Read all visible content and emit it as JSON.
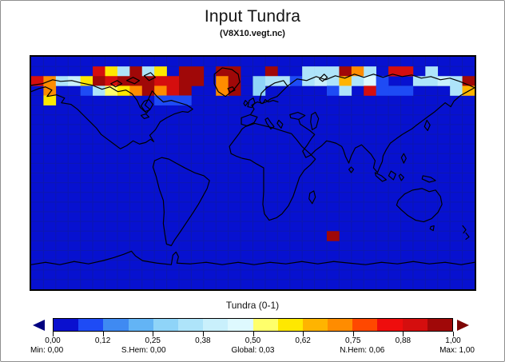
{
  "header": {
    "title": "Input Tundra",
    "subtitle": "(V8X10.vegt.nc)"
  },
  "colorbar": {
    "label": "Tundra (0-1)",
    "tick_labels": [
      "0,00",
      "0,12",
      "0,25",
      "0,38",
      "0,50",
      "0,62",
      "0,75",
      "0,88",
      "1,00"
    ],
    "stats": [
      "Min: 0,00",
      "S.Hem: 0,00",
      "Global: 0,03",
      "N.Hem: 0,06",
      "Max: 1,00"
    ],
    "underflow_arrow_color": "#000080",
    "overflow_arrow_color": "#7d0606"
  },
  "chart_data": {
    "type": "heatmap",
    "title": "Input Tundra",
    "subtitle": "(V8X10.vegt.nc)",
    "colorbar_label": "Tundra (0-1)",
    "value_range": [
      0,
      1
    ],
    "stats": {
      "min": "0,00",
      "s_hem": "0,00",
      "global": "0,03",
      "n_hem": "0,06",
      "max": "1,00"
    },
    "grid": {
      "cols": 36,
      "rows": 24,
      "projection": "equirectangular world map, 8x10 degree cells"
    },
    "ocean_color": "#0711d0",
    "gridline_color": "#0d17b0",
    "palette": [
      "#0a10cf",
      "#1e4bf5",
      "#3f8af2",
      "#63b4f5",
      "#8fd4f8",
      "#aee4fa",
      "#c9f0fc",
      "#def9fe",
      "#ffff6b",
      "#ffe800",
      "#ffb400",
      "#ff8c00",
      "#ff4800",
      "#ee0d0d",
      "#d50e0e",
      "#a00808"
    ],
    "cells": [
      [
        5,
        1,
        0.88
      ],
      [
        6,
        1,
        0.6
      ],
      [
        7,
        1,
        0.35
      ],
      [
        8,
        1,
        0.97
      ],
      [
        9,
        1,
        0.35
      ],
      [
        10,
        1,
        0.6
      ],
      [
        12,
        1,
        0.97
      ],
      [
        13,
        1,
        0.97
      ],
      [
        15,
        1,
        0.97
      ],
      [
        16,
        1,
        0.97
      ],
      [
        19,
        1,
        0.97
      ],
      [
        22,
        1,
        0.35
      ],
      [
        23,
        1,
        0.35
      ],
      [
        24,
        1,
        0.35
      ],
      [
        25,
        1,
        0.97
      ],
      [
        26,
        1,
        0.72
      ],
      [
        27,
        1,
        0.35
      ],
      [
        29,
        1,
        0.88
      ],
      [
        30,
        1,
        0.88
      ],
      [
        32,
        1,
        0.35
      ],
      [
        0,
        2,
        0.88
      ],
      [
        1,
        2,
        0.72
      ],
      [
        2,
        2,
        0.35
      ],
      [
        3,
        2,
        0.42
      ],
      [
        4,
        2,
        0.6
      ],
      [
        5,
        2,
        0.97
      ],
      [
        6,
        2,
        0.88
      ],
      [
        7,
        2,
        0.97
      ],
      [
        8,
        2,
        0.97
      ],
      [
        9,
        2,
        0.97
      ],
      [
        10,
        2,
        0.88
      ],
      [
        11,
        2,
        0.88
      ],
      [
        12,
        2,
        0.97
      ],
      [
        13,
        2,
        0.97
      ],
      [
        15,
        2,
        0.72
      ],
      [
        16,
        2,
        0.97
      ],
      [
        18,
        2,
        0.28
      ],
      [
        19,
        2,
        0.35
      ],
      [
        20,
        2,
        0.35
      ],
      [
        21,
        2,
        0.12
      ],
      [
        22,
        2,
        0.35
      ],
      [
        23,
        2,
        0.42
      ],
      [
        24,
        2,
        0.35
      ],
      [
        25,
        2,
        0.66
      ],
      [
        26,
        2,
        0.35
      ],
      [
        27,
        2,
        0.47
      ],
      [
        28,
        2,
        0.12
      ],
      [
        31,
        2,
        0.35
      ],
      [
        32,
        2,
        0.35
      ],
      [
        33,
        2,
        0.42
      ],
      [
        34,
        2,
        0.35
      ],
      [
        35,
        2,
        0.97
      ],
      [
        1,
        3,
        0.72
      ],
      [
        4,
        3,
        0.12
      ],
      [
        5,
        3,
        0.35
      ],
      [
        6,
        3,
        0.53
      ],
      [
        7,
        3,
        0.6
      ],
      [
        8,
        3,
        0.72
      ],
      [
        9,
        3,
        0.97
      ],
      [
        10,
        3,
        0.72
      ],
      [
        11,
        3,
        0.88
      ],
      [
        12,
        3,
        0.97
      ],
      [
        15,
        3,
        0.72
      ],
      [
        16,
        3,
        0.97
      ],
      [
        18,
        3,
        0.28
      ],
      [
        24,
        3,
        0.12
      ],
      [
        25,
        3,
        0.35
      ],
      [
        27,
        3,
        0.88
      ],
      [
        28,
        3,
        0.12
      ],
      [
        29,
        3,
        0.12
      ],
      [
        30,
        3,
        0.12
      ],
      [
        34,
        3,
        0.35
      ],
      [
        35,
        3,
        0.66
      ],
      [
        1,
        4,
        0.6
      ],
      [
        10,
        4,
        0.12
      ],
      [
        11,
        4,
        0.12
      ],
      [
        12,
        4,
        0.12
      ],
      [
        24,
        18,
        0.97
      ]
    ]
  }
}
